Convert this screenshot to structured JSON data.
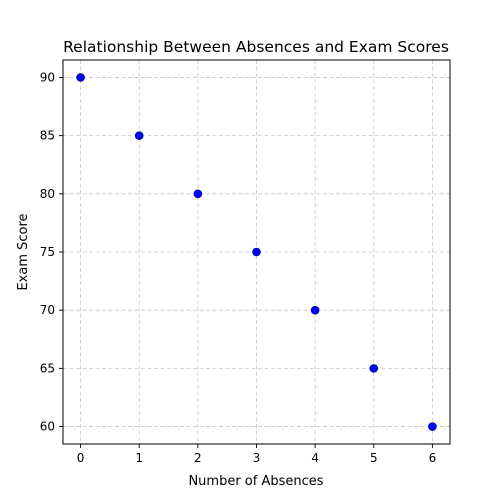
{
  "chart_data": {
    "type": "scatter",
    "title": "Relationship Between Absences and Exam Scores",
    "xlabel": "Number of Absences",
    "ylabel": "Exam Score",
    "x": [
      0,
      1,
      2,
      3,
      4,
      5,
      6
    ],
    "y": [
      90,
      85,
      80,
      75,
      70,
      65,
      60
    ],
    "xlim": [
      -0.3,
      6.3
    ],
    "ylim": [
      58.5,
      91.5
    ],
    "xticks": [
      0,
      1,
      2,
      3,
      4,
      5,
      6
    ],
    "yticks": [
      60,
      65,
      70,
      75,
      80,
      85,
      90
    ],
    "grid": true,
    "grid_style": "dashed",
    "marker_color": "#0000ff",
    "marker_edge_color": "#000080",
    "grid_color": "#c8c8c8",
    "axis_color": "#000000",
    "background": "#ffffff"
  }
}
